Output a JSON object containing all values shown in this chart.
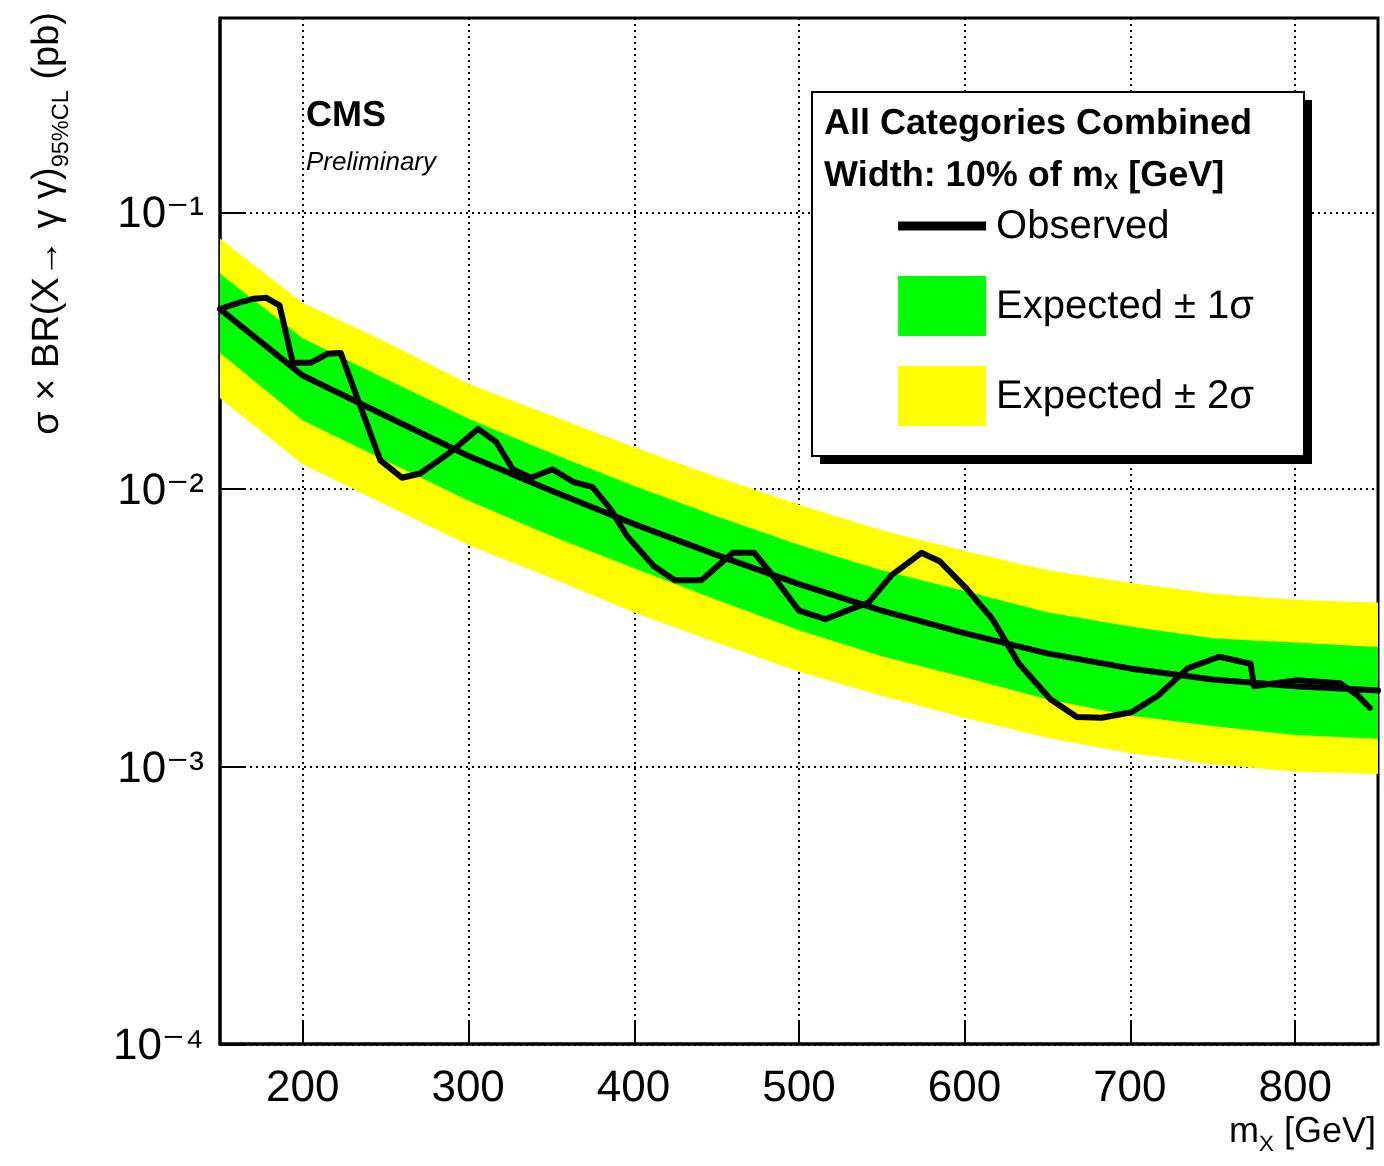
{
  "chart_data": {
    "type": "line",
    "xlabel": "m$_{X}$ [GeV]",
    "ylabel": "σ × BR(X→ γ γ)$_{95%CL}$ (pb)",
    "legend_title": "All Categories Combined\nWidth: 10% of m$_{X}$ [GeV]",
    "annotations": [
      "CMS",
      "Preliminary"
    ],
    "log": "y",
    "grid": true,
    "legend": "top right",
    "marker": "none",
    "xlim": [
      150,
      850
    ],
    "xticks": [
      200,
      300,
      400,
      500,
      600,
      700,
      800
    ],
    "ylim": [
      0.0001,
      0.5
    ],
    "yticks": [
      {
        "value": 0.0001,
        "label": "10⁻⁴"
      },
      {
        "value": 0.001,
        "label": "10⁻³"
      },
      {
        "value": 0.01,
        "label": "10⁻²"
      },
      {
        "value": 0.1,
        "label": "10⁻¹"
      }
    ],
    "series": [
      {
        "name": "Observed",
        "type": "line",
        "color": "#000000",
        "x": [
          150,
          162,
          170,
          178,
          186,
          194,
          205,
          215,
          223,
          231,
          247,
          260,
          271,
          290,
          306,
          317,
          327,
          338,
          351,
          364,
          375,
          386,
          396,
          412,
          425,
          441,
          460,
          473,
          484,
          500,
          516,
          529,
          542,
          556,
          574,
          585,
          601,
          617,
          633,
          652,
          668,
          683,
          701,
          717,
          735,
          754,
          773,
          775,
          801,
          827,
          838,
          845
        ],
        "values": [
          0.0446,
          0.0472,
          0.0486,
          0.049,
          0.046,
          0.0286,
          0.0286,
          0.0308,
          0.031,
          0.023,
          0.0127,
          0.011,
          0.0114,
          0.0137,
          0.0165,
          0.0148,
          0.0118,
          0.011,
          0.0118,
          0.0106,
          0.0102,
          0.0085,
          0.0068,
          0.0053,
          0.0047,
          0.0047,
          0.0059,
          0.0059,
          0.0049,
          0.00365,
          0.0034,
          0.00365,
          0.0039,
          0.0049,
          0.0059,
          0.0055,
          0.0044,
          0.0034,
          0.00235,
          0.00175,
          0.00151,
          0.0015,
          0.00157,
          0.0018,
          0.00226,
          0.00249,
          0.00235,
          0.00195,
          0.00205,
          0.002,
          0.0018,
          0.00163
        ]
      },
      {
        "name": "Expected ± 1σ",
        "type": "line",
        "color": "#00ff00",
        "x": [
          150,
          200,
          250,
          300,
          350,
          400,
          450,
          500,
          550,
          600,
          650,
          700,
          750,
          800,
          850
        ],
        "values": [
          null,
          null,
          null,
          null,
          null,
          null,
          null,
          null,
          null,
          null,
          null,
          null,
          null,
          null,
          null
        ],
        "lower": [
          0.031,
          0.0177,
          0.0127,
          0.0091,
          0.0068,
          0.0052,
          0.004,
          0.0031,
          0.0025,
          0.0021,
          0.00175,
          0.00153,
          0.0014,
          0.0013,
          0.00126
        ],
        "upper": [
          0.06,
          0.035,
          0.025,
          0.018,
          0.0135,
          0.0103,
          0.008,
          0.0063,
          0.0051,
          0.0043,
          0.0036,
          0.0032,
          0.0029,
          0.0028,
          0.0027
        ]
      },
      {
        "name": "Expected ± 2σ",
        "type": "line",
        "color": "#ffff00",
        "x": [
          150,
          200,
          250,
          300,
          350,
          400,
          450,
          500,
          550,
          600,
          650,
          700,
          750,
          800,
          850
        ],
        "values": [
          null,
          null,
          null,
          null,
          null,
          null,
          null,
          null,
          null,
          null,
          null,
          null,
          null,
          null,
          null
        ],
        "lower": [
          0.0213,
          0.0123,
          0.0088,
          0.0063,
          0.0048,
          0.0036,
          0.0028,
          0.0022,
          0.0018,
          0.0015,
          0.00127,
          0.00112,
          0.00102,
          0.00096,
          0.00094
        ],
        "upper": [
          0.08,
          0.047,
          0.034,
          0.024,
          0.0185,
          0.0142,
          0.0111,
          0.0088,
          0.0071,
          0.006,
          0.0051,
          0.0046,
          0.0042,
          0.004,
          0.0039
        ]
      },
      {
        "type": "line",
        "color": "#000000",
        "x": [
          150,
          200,
          250,
          300,
          350,
          400,
          450,
          500,
          550,
          600,
          650,
          700,
          750,
          800,
          850
        ],
        "values": [
          0.0446,
          0.0257,
          0.0184,
          0.0132,
          0.0099,
          0.0075,
          0.0058,
          0.00455,
          0.00365,
          0.00303,
          0.00256,
          0.00226,
          0.00206,
          0.00195,
          0.00188
        ]
      }
    ]
  }
}
